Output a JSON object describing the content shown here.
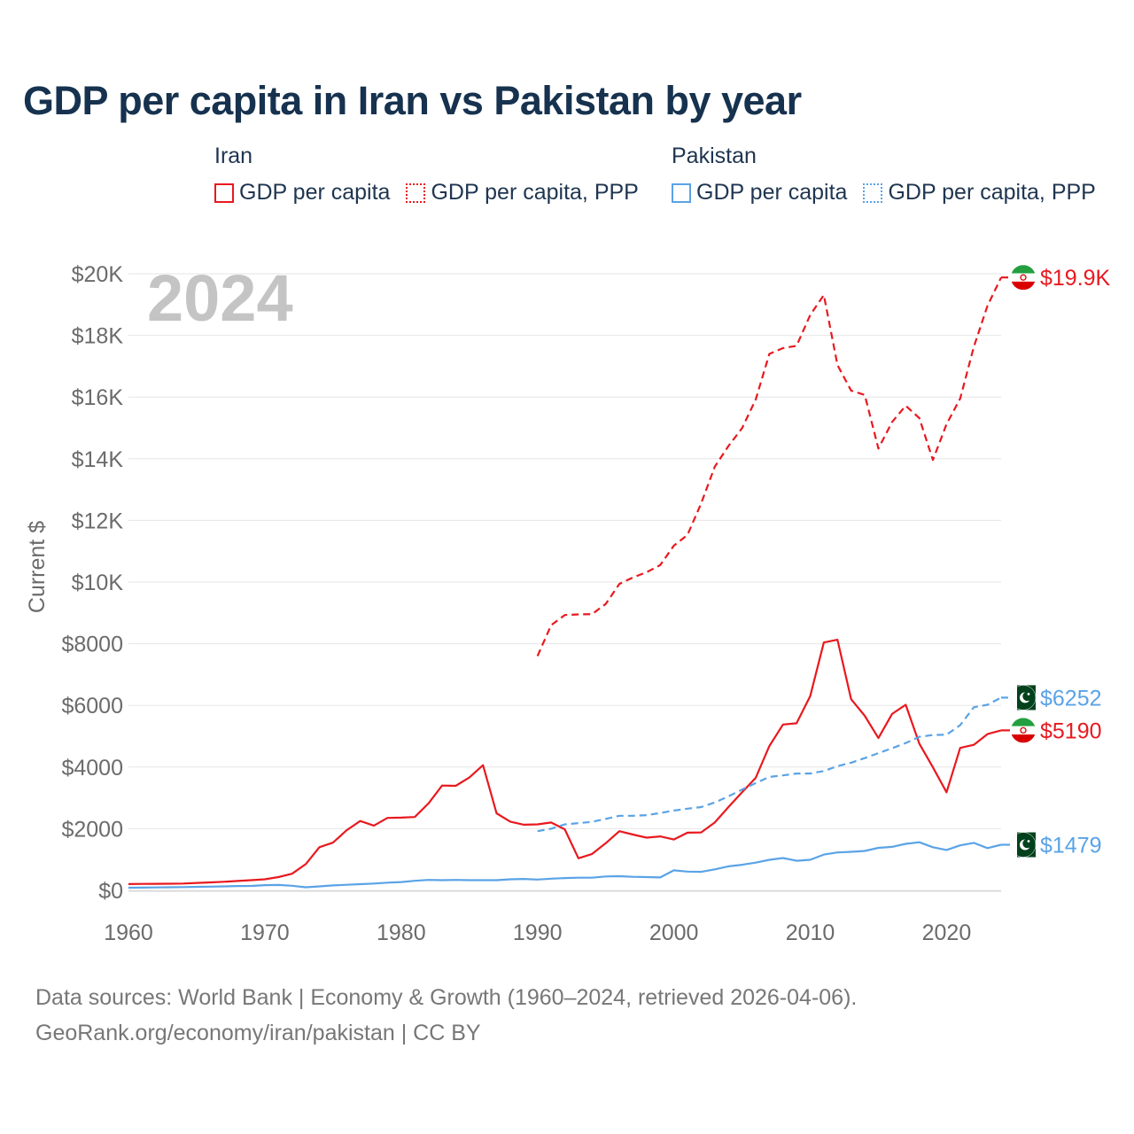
{
  "title": "GDP per capita in Iran vs Pakistan by year",
  "legend": {
    "groups": [
      {
        "name": "Iran",
        "items": [
          {
            "label": "GDP per capita",
            "style": "solid",
            "color": "#e8191f"
          },
          {
            "label": "GDP per capita, PPP",
            "style": "dotted",
            "color": "#e8191f"
          }
        ]
      },
      {
        "name": "Pakistan",
        "items": [
          {
            "label": "GDP per capita",
            "style": "solid",
            "color": "#5aa3e6"
          },
          {
            "label": "GDP per capita, PPP",
            "style": "dotted",
            "color": "#5aa3e6"
          }
        ]
      }
    ]
  },
  "footer": {
    "line1": "Data sources: World Bank | Economy & Growth (1960–2024, retrieved 2026-04-06).",
    "line2": "GeoRank.org/economy/iran/pakistan | CC BY"
  },
  "chart_data": {
    "type": "line",
    "title": "GDP per capita in Iran vs Pakistan by year",
    "year_label": "2024",
    "ylabel": "Current $",
    "xlabel": "",
    "xlim": [
      1960,
      2024
    ],
    "ylim": [
      0,
      20000
    ],
    "xticks": [
      1960,
      1970,
      1980,
      1990,
      2000,
      2010,
      2020
    ],
    "yticks": [
      0,
      2000,
      4000,
      6000,
      8000,
      10000,
      12000,
      14000,
      16000,
      18000,
      20000
    ],
    "ytick_labels": [
      "$0",
      "$2000",
      "$4000",
      "$6000",
      "$8000",
      "$10K",
      "$12K",
      "$14K",
      "$16K",
      "$18K",
      "$20K"
    ],
    "grid": true,
    "series": [
      {
        "name": "Iran GDP per capita",
        "country": "Iran",
        "flag": "iran",
        "color": "#e8191f",
        "dash": "solid",
        "end_label": "$5190",
        "x_start": 1960,
        "values": [
          205,
          210,
          212,
          215,
          220,
          240,
          260,
          280,
          305,
          330,
          360,
          430,
          540,
          850,
          1400,
          1550,
          1950,
          2250,
          2100,
          2350,
          2360,
          2380,
          2820,
          3400,
          3390,
          3660,
          4060,
          2500,
          2230,
          2130,
          2140,
          2200,
          1980,
          1040,
          1180,
          1530,
          1920,
          1810,
          1710,
          1750,
          1650,
          1870,
          1880,
          2200,
          2700,
          3180,
          3650,
          4680,
          5380,
          5420,
          6300,
          8040,
          8130,
          6200,
          5660,
          4940,
          5720,
          6020,
          4760,
          3990,
          3180,
          4620,
          4720,
          5070,
          5190
        ]
      },
      {
        "name": "Iran GDP per capita, PPP",
        "country": "Iran",
        "flag": "iran",
        "color": "#e8191f",
        "dash": "dashed",
        "end_label": "$19.9K",
        "x_start": 1990,
        "values": [
          7600,
          8600,
          8930,
          8950,
          8960,
          9290,
          9940,
          10150,
          10320,
          10550,
          11180,
          11530,
          12550,
          13740,
          14410,
          14990,
          15920,
          17400,
          17590,
          17660,
          18660,
          19310,
          17040,
          16210,
          16070,
          14330,
          15190,
          15720,
          15320,
          13960,
          15120,
          15950,
          17630,
          18960,
          19880
        ]
      },
      {
        "name": "Pakistan GDP per capita",
        "country": "Pakistan",
        "flag": "pakistan",
        "color": "#5aa3e6",
        "dash": "solid",
        "end_label": "$1479",
        "x_start": 1960,
        "values": [
          85,
          90,
          95,
          100,
          105,
          115,
          120,
          130,
          140,
          145,
          170,
          175,
          150,
          100,
          130,
          160,
          180,
          200,
          220,
          250,
          270,
          310,
          340,
          330,
          340,
          330,
          330,
          330,
          360,
          370,
          350,
          380,
          400,
          410,
          410,
          450,
          460,
          440,
          430,
          420,
          650,
          610,
          600,
          680,
          780,
          830,
          900,
          990,
          1050,
          960,
          990,
          1160,
          1230,
          1250,
          1280,
          1380,
          1410,
          1510,
          1560,
          1400,
          1310,
          1460,
          1540,
          1370,
          1479
        ]
      },
      {
        "name": "Pakistan GDP per capita, PPP",
        "country": "Pakistan",
        "flag": "pakistan",
        "color": "#5aa3e6",
        "dash": "dashed",
        "end_label": "$6252",
        "x_start": 1990,
        "values": [
          1920,
          2000,
          2140,
          2180,
          2220,
          2320,
          2420,
          2420,
          2440,
          2510,
          2590,
          2650,
          2700,
          2850,
          3050,
          3270,
          3480,
          3680,
          3730,
          3790,
          3790,
          3870,
          4030,
          4140,
          4290,
          4450,
          4610,
          4780,
          4980,
          5040,
          5050,
          5360,
          5940,
          6020,
          6252
        ]
      }
    ]
  }
}
